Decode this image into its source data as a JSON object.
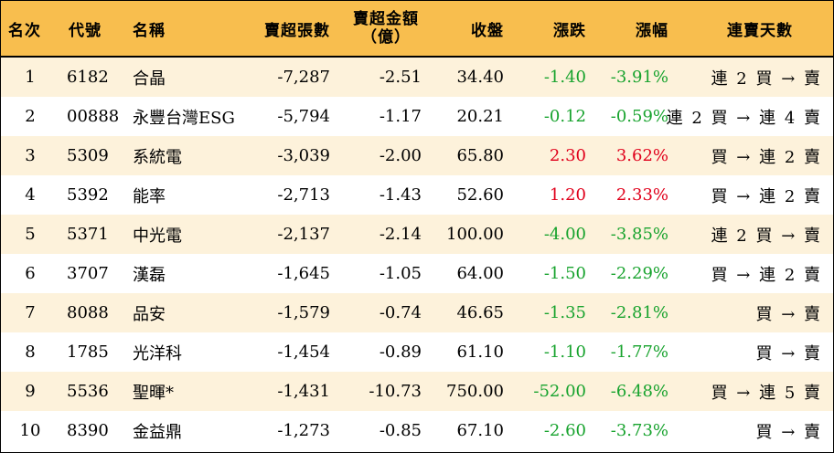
{
  "headers": {
    "rank": "名次",
    "code": "代號",
    "name": "名稱",
    "short_count": "賣超張數",
    "short_amount_line1": "賣超金額",
    "short_amount_line2": "（億）",
    "close": "收盤",
    "change": "漲跌",
    "change_pct": "漲幅",
    "consecutive_days": "連賣天數"
  },
  "rows": [
    {
      "rank": "1",
      "code": "6182",
      "name": "合晶",
      "short_count": "-7,287",
      "short_amount": "-2.51",
      "close": "34.40",
      "change": "-1.40",
      "change_pct": "-3.91%",
      "days": "連 2 買 → 賣",
      "dir": "neg"
    },
    {
      "rank": "2",
      "code": "00888",
      "name": "永豐台灣ESG",
      "short_count": "-5,794",
      "short_amount": "-1.17",
      "close": "20.21",
      "change": "-0.12",
      "change_pct": "-0.59%",
      "days": "連 2 買 → 連 4 賣",
      "dir": "neg"
    },
    {
      "rank": "3",
      "code": "5309",
      "name": "系統電",
      "short_count": "-3,039",
      "short_amount": "-2.00",
      "close": "65.80",
      "change": "2.30",
      "change_pct": "3.62%",
      "days": "買 → 連 2 賣",
      "dir": "pos"
    },
    {
      "rank": "4",
      "code": "5392",
      "name": "能率",
      "short_count": "-2,713",
      "short_amount": "-1.43",
      "close": "52.60",
      "change": "1.20",
      "change_pct": "2.33%",
      "days": "買 → 連 2 賣",
      "dir": "pos"
    },
    {
      "rank": "5",
      "code": "5371",
      "name": "中光電",
      "short_count": "-2,137",
      "short_amount": "-2.14",
      "close": "100.00",
      "change": "-4.00",
      "change_pct": "-3.85%",
      "days": "連 2 買 → 賣",
      "dir": "neg"
    },
    {
      "rank": "6",
      "code": "3707",
      "name": "漢磊",
      "short_count": "-1,645",
      "short_amount": "-1.05",
      "close": "64.00",
      "change": "-1.50",
      "change_pct": "-2.29%",
      "days": "買 → 連 2 賣",
      "dir": "neg"
    },
    {
      "rank": "7",
      "code": "8088",
      "name": "品安",
      "short_count": "-1,579",
      "short_amount": "-0.74",
      "close": "46.65",
      "change": "-1.35",
      "change_pct": "-2.81%",
      "days": "買 → 賣",
      "dir": "neg"
    },
    {
      "rank": "8",
      "code": "1785",
      "name": "光洋科",
      "short_count": "-1,454",
      "short_amount": "-0.89",
      "close": "61.10",
      "change": "-1.10",
      "change_pct": "-1.77%",
      "days": "買 → 賣",
      "dir": "neg"
    },
    {
      "rank": "9",
      "code": "5536",
      "name": "聖暉*",
      "short_count": "-1,431",
      "short_amount": "-10.73",
      "close": "750.00",
      "change": "-52.00",
      "change_pct": "-6.48%",
      "days": "買 → 連 5 賣",
      "dir": "neg"
    },
    {
      "rank": "10",
      "code": "8390",
      "name": "金益鼎",
      "short_count": "-1,273",
      "short_amount": "-0.85",
      "close": "67.10",
      "change": "-2.60",
      "change_pct": "-3.73%",
      "days": "買 → 賣",
      "dir": "neg"
    }
  ],
  "colors": {
    "header_bg": "#f8be4e",
    "alt_row_bg": "#fdf2db",
    "up": "#e0001b",
    "down": "#18a32e"
  }
}
